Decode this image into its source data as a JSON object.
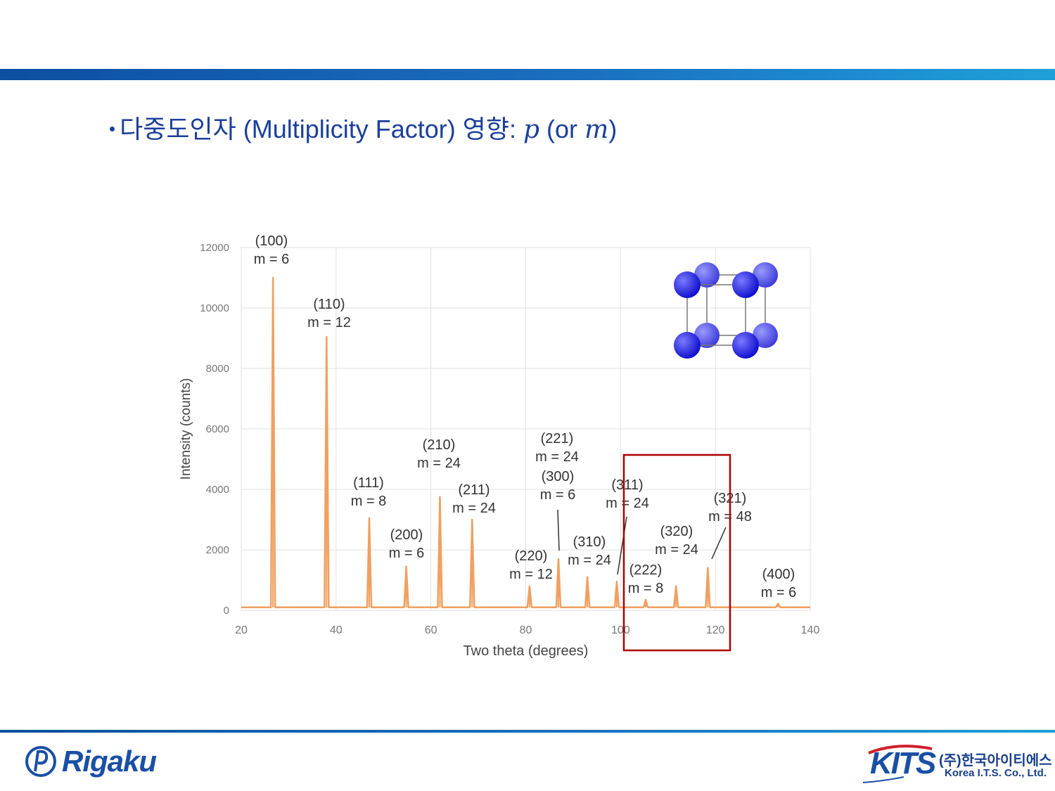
{
  "title": {
    "bullet": "•",
    "text": "다중도인자 (Multiplicity Factor) 영향: ",
    "p": "p",
    "or": " (or ",
    "m": "m",
    "close": ")"
  },
  "colors": {
    "accent_blue": "#1b3f9a",
    "peak_line": "#f0a060",
    "highlight_box": "#b00000",
    "atom_blue": "#0a0acc"
  },
  "chart_data": {
    "type": "line",
    "xlabel": "Two theta (degrees)",
    "ylabel": "Intensity (counts)",
    "xlim": [
      20,
      140
    ],
    "ylim": [
      0,
      12000
    ],
    "xticks": [
      20,
      40,
      60,
      80,
      100,
      120,
      140
    ],
    "yticks": [
      0,
      2000,
      4000,
      6000,
      8000,
      10000,
      12000
    ],
    "grid": true,
    "baseline": 100,
    "peaks": [
      {
        "x": 26.7,
        "y": 11000
      },
      {
        "x": 38.0,
        "y": 9050
      },
      {
        "x": 47.0,
        "y": 3050
      },
      {
        "x": 54.8,
        "y": 1450
      },
      {
        "x": 61.9,
        "y": 3750
      },
      {
        "x": 68.7,
        "y": 3000
      },
      {
        "x": 80.8,
        "y": 800
      },
      {
        "x": 86.9,
        "y": 1700
      },
      {
        "x": 93.0,
        "y": 1100
      },
      {
        "x": 99.2,
        "y": 950
      },
      {
        "x": 105.3,
        "y": 350
      },
      {
        "x": 111.7,
        "y": 800
      },
      {
        "x": 118.4,
        "y": 1400
      },
      {
        "x": 133.2,
        "y": 220
      }
    ],
    "annotations": [
      {
        "hkl": "(100)",
        "m": "m = 6"
      },
      {
        "hkl": "(110)",
        "m": "m = 12"
      },
      {
        "hkl": "(111)",
        "m": "m = 8"
      },
      {
        "hkl": "(200)",
        "m": "m = 6"
      },
      {
        "hkl": "(210)",
        "m": "m = 24"
      },
      {
        "hkl": "(211)",
        "m": "m = 24"
      },
      {
        "hkl": "(220)",
        "m": "m = 12"
      },
      {
        "hkl": "(221)",
        "m": "m = 24"
      },
      {
        "hkl": "(300)",
        "m": "m = 6"
      },
      {
        "hkl": "(310)",
        "m": "m = 24"
      },
      {
        "hkl": "(311)",
        "m": "m = 24"
      },
      {
        "hkl": "(222)",
        "m": "m = 8"
      },
      {
        "hkl": "(320)",
        "m": "m = 24"
      },
      {
        "hkl": "(321)",
        "m": "m = 48"
      },
      {
        "hkl": "(400)",
        "m": "m = 6"
      }
    ]
  },
  "footer": {
    "rigaku": "Rigaku",
    "kits": "KITS",
    "kits_korean": "(주)한국아이티에스",
    "kits_english": "Korea I.T.S. Co., Ltd."
  }
}
